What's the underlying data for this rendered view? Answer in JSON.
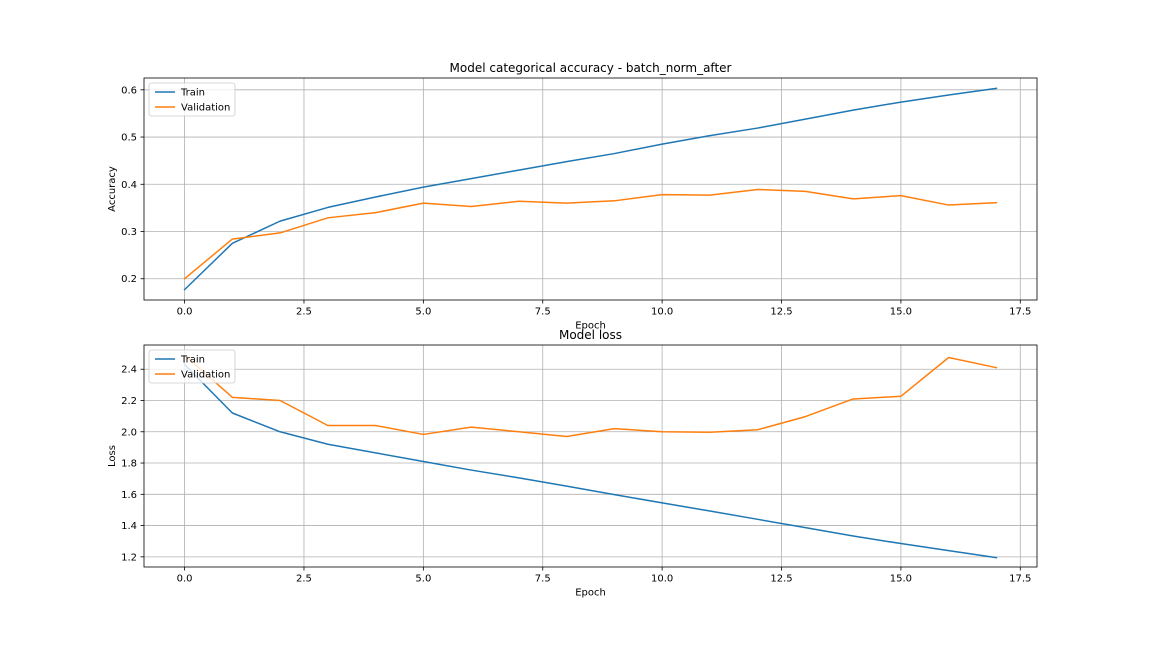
{
  "chart_data": [
    {
      "type": "line",
      "title": "Model categorical accuracy - batch_norm_after",
      "xlabel": "Epoch",
      "ylabel": "Accuracy",
      "xlim": [
        -0.85,
        17.85
      ],
      "ylim": [
        0.155,
        0.625
      ],
      "xticks": [
        0,
        2.5,
        5,
        7.5,
        10,
        12.5,
        15,
        17.5
      ],
      "xtick_labels": [
        "0.0",
        "2.5",
        "5.0",
        "7.5",
        "10.0",
        "12.5",
        "15.0",
        "17.5"
      ],
      "yticks": [
        0.2,
        0.3,
        0.4,
        0.5,
        0.6
      ],
      "ytick_labels": [
        "0.2",
        "0.3",
        "0.4",
        "0.5",
        "0.6"
      ],
      "grid": true,
      "legend_position": "upper-left",
      "x": [
        0,
        1,
        2,
        3,
        4,
        5,
        6,
        7,
        8,
        9,
        10,
        11,
        12,
        13,
        14,
        15,
        16,
        17
      ],
      "series": [
        {
          "name": "Train",
          "color": "#1f77b4",
          "values": [
            0.177,
            0.275,
            0.322,
            0.351,
            0.373,
            0.394,
            0.412,
            0.43,
            0.448,
            0.465,
            0.485,
            0.503,
            0.519,
            0.538,
            0.557,
            0.574,
            0.589,
            0.603
          ]
        },
        {
          "name": "Validation",
          "color": "#ff7f0e",
          "values": [
            0.2,
            0.284,
            0.297,
            0.329,
            0.34,
            0.36,
            0.353,
            0.364,
            0.36,
            0.365,
            0.378,
            0.377,
            0.389,
            0.385,
            0.369,
            0.376,
            0.356,
            0.361
          ]
        }
      ]
    },
    {
      "type": "line",
      "title": "Model loss",
      "xlabel": "Epoch",
      "ylabel": "Loss",
      "xlim": [
        -0.85,
        17.85
      ],
      "ylim": [
        1.135,
        2.555
      ],
      "xticks": [
        0,
        2.5,
        5,
        7.5,
        10,
        12.5,
        15,
        17.5
      ],
      "xtick_labels": [
        "0.0",
        "2.5",
        "5.0",
        "7.5",
        "10.0",
        "12.5",
        "15.0",
        "17.5"
      ],
      "yticks": [
        1.2,
        1.4,
        1.6,
        1.8,
        2.0,
        2.2,
        2.4
      ],
      "ytick_labels": [
        "1.2",
        "1.4",
        "1.6",
        "1.8",
        "2.0",
        "2.2",
        "2.4"
      ],
      "grid": true,
      "legend_position": "upper-left",
      "x": [
        0,
        1,
        2,
        3,
        4,
        5,
        6,
        7,
        8,
        9,
        10,
        11,
        12,
        13,
        14,
        15,
        16,
        17
      ],
      "series": [
        {
          "name": "Train",
          "color": "#1f77b4",
          "values": [
            2.43,
            2.12,
            2.0,
            1.92,
            1.865,
            1.81,
            1.755,
            1.705,
            1.652,
            1.598,
            1.545,
            1.493,
            1.44,
            1.387,
            1.333,
            1.285,
            1.24,
            1.195
          ]
        },
        {
          "name": "Validation",
          "color": "#ff7f0e",
          "values": [
            2.49,
            2.22,
            2.2,
            2.04,
            2.04,
            1.983,
            2.03,
            2.0,
            1.97,
            2.02,
            2.0,
            1.997,
            2.013,
            2.097,
            2.21,
            2.227,
            2.475,
            2.41
          ]
        }
      ]
    }
  ]
}
